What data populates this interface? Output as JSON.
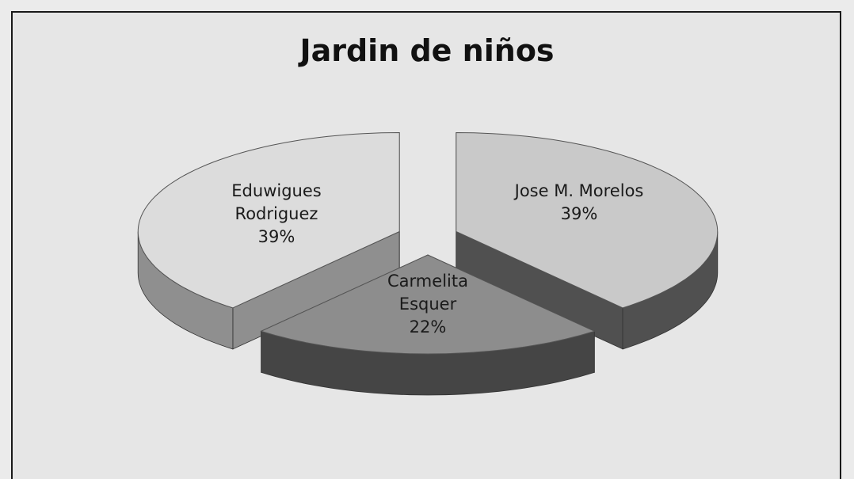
{
  "chart_data": {
    "type": "pie",
    "title": "Jardin de niños",
    "categories": [
      "Jose M. Morelos",
      "Carmelita Esquer",
      "Eduwigues Rodriguez"
    ],
    "values": [
      39,
      22,
      39
    ],
    "value_labels": [
      "39%",
      "22%",
      "39%"
    ],
    "colors": [
      "#c9c9c9",
      "#8d8d8d",
      "#dcdcdc"
    ],
    "side_colors": [
      "#505050",
      "#454545",
      "#8f8f8f"
    ],
    "three_d": true,
    "exploded": true
  }
}
